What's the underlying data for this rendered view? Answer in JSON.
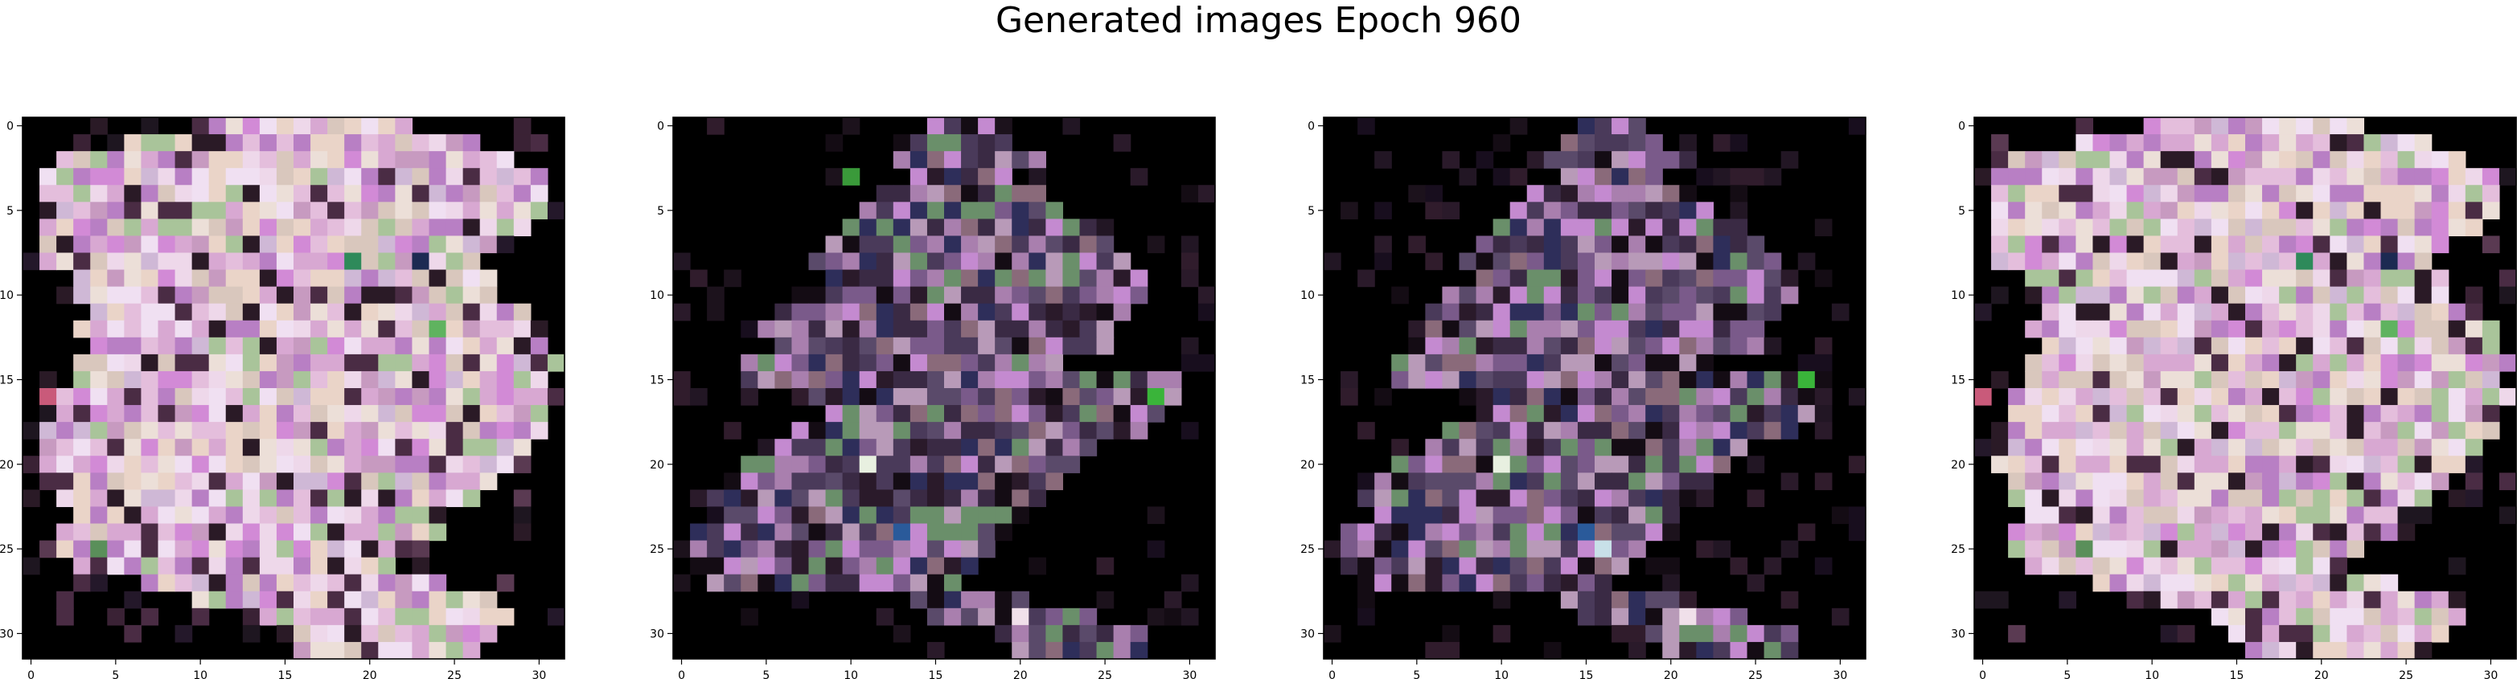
{
  "figure": {
    "title": "Generated images Epoch 960"
  },
  "chart_data": [
    {
      "type": "heatmap",
      "subtype": "rgb-image",
      "rows": 32,
      "cols": 32,
      "xticks": [
        0,
        5,
        10,
        15,
        20,
        25,
        30
      ],
      "yticks": [
        0,
        5,
        10,
        15,
        20,
        25,
        30
      ],
      "xlim": [
        -0.5,
        31.5
      ],
      "ylim": [
        31.5,
        -0.5
      ],
      "background": "#000000",
      "palette": [
        "#eed8ea",
        "#e4bedc",
        "#d9c7bd",
        "#c79ac0",
        "#ecdfd8",
        "#d8a8d2",
        "#d28ad6",
        "#a9c49a",
        "#ead4c8",
        "#cfb8d6",
        "#f0e0f2",
        "#b87fc4"
      ],
      "dark_palette": [
        "#2a1a26",
        "#3a2235",
        "#1e1620",
        "#4a2c44",
        "#24182a",
        "#5a3a52"
      ],
      "blob_rows": [
        [
          10,
          22
        ],
        [
          6,
          26
        ],
        [
          2,
          28
        ],
        [
          1,
          30
        ],
        [
          1,
          30
        ],
        [
          1,
          30
        ],
        [
          1,
          29
        ],
        [
          1,
          27
        ],
        [
          1,
          26
        ],
        [
          3,
          27
        ],
        [
          3,
          27
        ],
        [
          4,
          29
        ],
        [
          3,
          30
        ],
        [
          4,
          30
        ],
        [
          3,
          31
        ],
        [
          3,
          30
        ],
        [
          2,
          31
        ],
        [
          2,
          30
        ],
        [
          1,
          30
        ],
        [
          1,
          29
        ],
        [
          1,
          28
        ],
        [
          2,
          27
        ],
        [
          2,
          26
        ],
        [
          3,
          24
        ],
        [
          2,
          24
        ],
        [
          2,
          22
        ],
        [
          3,
          21
        ],
        [
          7,
          24
        ],
        [
          10,
          27
        ],
        [
          14,
          28
        ],
        [
          15,
          27
        ],
        [
          16,
          26
        ]
      ],
      "accents": [
        {
          "r": 8,
          "c": 19,
          "color": "#2e8a5a"
        },
        {
          "r": 8,
          "c": 23,
          "color": "#1c2a52"
        },
        {
          "r": 16,
          "c": 1,
          "color": "#c95a7a"
        },
        {
          "r": 12,
          "c": 24,
          "color": "#5fb35f"
        },
        {
          "r": 25,
          "c": 4,
          "color": "#5a8f5a"
        }
      ]
    },
    {
      "type": "heatmap",
      "subtype": "rgb-image",
      "rows": 32,
      "cols": 32,
      "xticks": [
        0,
        5,
        10,
        15,
        20,
        25,
        30
      ],
      "yticks": [
        0,
        5,
        10,
        15,
        20,
        25,
        30
      ],
      "xlim": [
        -0.5,
        31.5
      ],
      "ylim": [
        31.5,
        -0.5
      ],
      "background": "#000000",
      "palette": [
        "#3a2a44",
        "#7a5a8a",
        "#a97fae",
        "#5a4a6a",
        "#c48ad0",
        "#6a8f6a",
        "#4a3a5a",
        "#2e2e5a",
        "#8a6a7a",
        "#b89ab8"
      ],
      "dark_palette": [
        "#140c14",
        "#1c121c",
        "#221624",
        "#2a1a2a",
        "#180e1e",
        "#301c2c"
      ],
      "blob_rows": [
        [
          15,
          18
        ],
        [
          14,
          19
        ],
        [
          13,
          21
        ],
        [
          14,
          19
        ],
        [
          12,
          21
        ],
        [
          11,
          22
        ],
        [
          10,
          24
        ],
        [
          9,
          25
        ],
        [
          8,
          26
        ],
        [
          9,
          27
        ],
        [
          7,
          27
        ],
        [
          6,
          26
        ],
        [
          5,
          25
        ],
        [
          6,
          25
        ],
        [
          4,
          22
        ],
        [
          4,
          29
        ],
        [
          8,
          29
        ],
        [
          9,
          28
        ],
        [
          7,
          27
        ],
        [
          6,
          24
        ],
        [
          4,
          23
        ],
        [
          3,
          22
        ],
        [
          2,
          21
        ],
        [
          3,
          20
        ],
        [
          1,
          19
        ],
        [
          1,
          18
        ],
        [
          1,
          17
        ],
        [
          2,
          16
        ],
        [
          14,
          20
        ],
        [
          15,
          24
        ],
        [
          19,
          27
        ],
        [
          20,
          27
        ]
      ],
      "accents": [
        {
          "r": 3,
          "c": 10,
          "color": "#3a9a3a"
        },
        {
          "r": 16,
          "c": 28,
          "color": "#3ab43a"
        },
        {
          "r": 24,
          "c": 13,
          "color": "#2a5a9a"
        },
        {
          "r": 20,
          "c": 11,
          "color": "#e8f0e0"
        },
        {
          "r": 29,
          "c": 20,
          "color": "#f0e0ea"
        }
      ]
    },
    {
      "type": "heatmap",
      "subtype": "rgb-image",
      "rows": 32,
      "cols": 32,
      "xticks": [
        0,
        5,
        10,
        15,
        20,
        25,
        30
      ],
      "yticks": [
        0,
        5,
        10,
        15,
        20,
        25,
        30
      ],
      "xlim": [
        -0.5,
        31.5
      ],
      "ylim": [
        31.5,
        -0.5
      ],
      "background": "#000000",
      "palette": [
        "#3a2a44",
        "#7a5a8a",
        "#a97fae",
        "#5a4a6a",
        "#c48ad0",
        "#6a8f6a",
        "#4a3a5a",
        "#2e2e5a",
        "#8a6a7a",
        "#b89ab8"
      ],
      "dark_palette": [
        "#140c14",
        "#1c121c",
        "#221624",
        "#2a1a2a",
        "#180e1e",
        "#301c2c"
      ],
      "blob_rows": [
        [
          15,
          18
        ],
        [
          14,
          19
        ],
        [
          13,
          21
        ],
        [
          14,
          19
        ],
        [
          12,
          21
        ],
        [
          11,
          22
        ],
        [
          10,
          24
        ],
        [
          9,
          25
        ],
        [
          8,
          26
        ],
        [
          9,
          27
        ],
        [
          7,
          27
        ],
        [
          6,
          26
        ],
        [
          5,
          25
        ],
        [
          6,
          25
        ],
        [
          4,
          22
        ],
        [
          4,
          29
        ],
        [
          8,
          29
        ],
        [
          9,
          28
        ],
        [
          7,
          27
        ],
        [
          6,
          24
        ],
        [
          4,
          23
        ],
        [
          3,
          22
        ],
        [
          2,
          21
        ],
        [
          3,
          20
        ],
        [
          1,
          19
        ],
        [
          1,
          18
        ],
        [
          1,
          17
        ],
        [
          2,
          16
        ],
        [
          14,
          20
        ],
        [
          15,
          24
        ],
        [
          19,
          27
        ],
        [
          20,
          27
        ]
      ],
      "accents": [
        {
          "r": 15,
          "c": 28,
          "color": "#3ab43a"
        },
        {
          "r": 24,
          "c": 15,
          "color": "#2a5a9a"
        },
        {
          "r": 20,
          "c": 10,
          "color": "#e8f0e0"
        },
        {
          "r": 25,
          "c": 16,
          "color": "#c8e0e8"
        },
        {
          "r": 29,
          "c": 21,
          "color": "#f0e0ea"
        }
      ]
    },
    {
      "type": "heatmap",
      "subtype": "rgb-image",
      "rows": 32,
      "cols": 32,
      "xticks": [
        0,
        5,
        10,
        15,
        20,
        25,
        30
      ],
      "yticks": [
        0,
        5,
        10,
        15,
        20,
        25,
        30
      ],
      "xlim": [
        -0.5,
        31.5
      ],
      "ylim": [
        31.5,
        -0.5
      ],
      "background": "#000000",
      "palette": [
        "#eed8ea",
        "#e4bedc",
        "#d9c7bd",
        "#c79ac0",
        "#ecdfd8",
        "#d8a8d2",
        "#d28ad6",
        "#a9c49a",
        "#ead4c8",
        "#cfb8d6",
        "#f0e0f2",
        "#b87fc4"
      ],
      "dark_palette": [
        "#2a1a26",
        "#3a2235",
        "#1e1620",
        "#4a2c44",
        "#24182a",
        "#5a3a52"
      ],
      "blob_rows": [
        [
          10,
          22
        ],
        [
          6,
          26
        ],
        [
          2,
          28
        ],
        [
          1,
          30
        ],
        [
          1,
          30
        ],
        [
          1,
          30
        ],
        [
          1,
          29
        ],
        [
          1,
          27
        ],
        [
          1,
          26
        ],
        [
          3,
          27
        ],
        [
          3,
          27
        ],
        [
          4,
          29
        ],
        [
          3,
          30
        ],
        [
          4,
          30
        ],
        [
          3,
          31
        ],
        [
          3,
          30
        ],
        [
          2,
          31
        ],
        [
          2,
          30
        ],
        [
          1,
          30
        ],
        [
          1,
          29
        ],
        [
          1,
          28
        ],
        [
          2,
          27
        ],
        [
          2,
          26
        ],
        [
          3,
          24
        ],
        [
          2,
          24
        ],
        [
          2,
          22
        ],
        [
          3,
          21
        ],
        [
          7,
          24
        ],
        [
          10,
          27
        ],
        [
          14,
          28
        ],
        [
          15,
          27
        ],
        [
          16,
          26
        ]
      ],
      "accents": [
        {
          "r": 8,
          "c": 19,
          "color": "#2e8a5a"
        },
        {
          "r": 8,
          "c": 24,
          "color": "#1c2a52"
        },
        {
          "r": 16,
          "c": 0,
          "color": "#c95a7a"
        },
        {
          "r": 12,
          "c": 24,
          "color": "#5fb35f"
        },
        {
          "r": 25,
          "c": 6,
          "color": "#5a8f5a"
        }
      ]
    }
  ]
}
